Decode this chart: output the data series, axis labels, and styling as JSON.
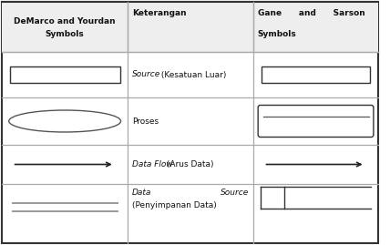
{
  "background_color": "#ffffff",
  "table_border_color": "#333333",
  "grid_color": "#aaaaaa",
  "TL": 2,
  "TR": 426,
  "TT": 267,
  "TB": 2,
  "C0": 2,
  "C1": 144,
  "C2": 285,
  "C3": 426,
  "R0": 267,
  "R1": 212,
  "R2": 162,
  "R3": 110,
  "R4": 67,
  "R5": 2,
  "header_bg": "#e8e8e8",
  "col1_header_line1": "DeMarco and Yourdan",
  "col1_header_line2": "Symbols",
  "col2_header": "Keterangan",
  "col3_header_line1": "Gane      and      Sarson",
  "col3_header_line2": "Symbols",
  "label_source": "Source",
  "label_source2": " (Kesatuan Luar)",
  "label_proses": "Proses",
  "label_dataflow1": "Data Flow",
  "label_dataflow2": " (Arus Data)",
  "label_data": "Data",
  "label_datasource": "Source",
  "label_penyimpanan": "(Penyimpanan Data)",
  "text_color": "#111111",
  "symbol_color": "#333333",
  "arrow_color": "#222222",
  "line_color": "#888888"
}
